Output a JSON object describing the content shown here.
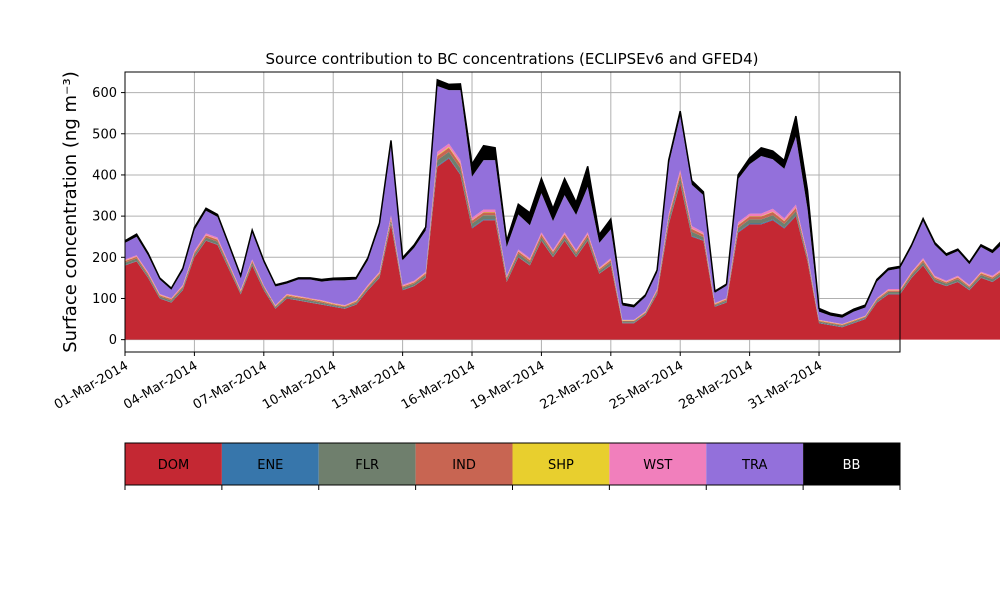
{
  "chart_data": {
    "type": "area",
    "stacked": true,
    "title": "Source contribution to BC concentrations (ECLIPSEv6 and GFED4)",
    "ylabel": "Surface concentration (ng m⁻³)",
    "xlabel": "",
    "x_start": "2014-03-01",
    "x_step_hours": 12,
    "xlim": [
      "2014-02-29T00:00",
      "2014-04-03T12:00"
    ],
    "ylim": [
      -30,
      650
    ],
    "yticks": [
      0,
      100,
      200,
      300,
      400,
      500,
      600
    ],
    "xtick_labels": [
      "01-Mar-2014",
      "04-Mar-2014",
      "07-Mar-2014",
      "10-Mar-2014",
      "13-Mar-2014",
      "16-Mar-2014",
      "19-Mar-2014",
      "22-Mar-2014",
      "25-Mar-2014",
      "28-Mar-2014",
      "31-Mar-2014"
    ],
    "grid": true,
    "legend_position": "bottom",
    "series": [
      {
        "name": "DOM",
        "color": "#c42833",
        "values": [
          180,
          190,
          150,
          100,
          90,
          120,
          200,
          240,
          230,
          170,
          110,
          180,
          120,
          75,
          100,
          95,
          90,
          85,
          80,
          75,
          85,
          120,
          150,
          280,
          120,
          130,
          150,
          420,
          440,
          400,
          270,
          290,
          290,
          140,
          200,
          180,
          240,
          200,
          240,
          200,
          240,
          160,
          180,
          40,
          40,
          60,
          110,
          280,
          380,
          250,
          240,
          80,
          90,
          260,
          280,
          280,
          290,
          270,
          300,
          190,
          40,
          35,
          30,
          40,
          50,
          90,
          110,
          110,
          150,
          180,
          140,
          130,
          140,
          120,
          150,
          140,
          160,
          150,
          200,
          190,
          210,
          170,
          200,
          200,
          200,
          180,
          160
        ]
      },
      {
        "name": "ENE",
        "color": "#3776ab",
        "values": [
          1,
          1,
          1,
          1,
          1,
          1,
          1,
          1,
          1,
          1,
          1,
          1,
          1,
          1,
          1,
          1,
          1,
          1,
          1,
          1,
          1,
          1,
          1,
          2,
          1,
          1,
          1,
          2,
          2,
          2,
          2,
          2,
          2,
          1,
          1,
          1,
          1,
          1,
          1,
          1,
          1,
          1,
          1,
          1,
          1,
          1,
          1,
          2,
          2,
          2,
          1,
          1,
          1,
          2,
          2,
          2,
          2,
          2,
          2,
          1,
          1,
          1,
          1,
          1,
          1,
          1,
          1,
          1,
          1,
          1,
          1,
          1,
          1,
          1,
          1,
          1,
          1,
          1,
          1,
          1,
          1,
          1,
          1,
          1,
          1,
          1,
          1
        ]
      },
      {
        "name": "FLR",
        "color": "#6f7f6d",
        "values": [
          6,
          6,
          5,
          4,
          4,
          5,
          6,
          7,
          7,
          6,
          4,
          6,
          5,
          3,
          4,
          4,
          4,
          4,
          3,
          3,
          4,
          5,
          6,
          8,
          5,
          5,
          6,
          14,
          14,
          14,
          10,
          10,
          10,
          6,
          8,
          7,
          8,
          7,
          8,
          7,
          8,
          6,
          7,
          3,
          3,
          3,
          5,
          10,
          12,
          10,
          8,
          3,
          4,
          9,
          10,
          10,
          10,
          9,
          10,
          7,
          3,
          3,
          3,
          3,
          3,
          4,
          5,
          5,
          6,
          7,
          6,
          5,
          6,
          5,
          6,
          6,
          6,
          6,
          8,
          8,
          8,
          7,
          8,
          8,
          8,
          7,
          7
        ]
      },
      {
        "name": "IND",
        "color": "#c86552",
        "values": [
          4,
          4,
          4,
          3,
          3,
          3,
          4,
          5,
          5,
          4,
          3,
          4,
          3,
          2,
          3,
          3,
          3,
          3,
          2,
          2,
          3,
          3,
          4,
          6,
          3,
          3,
          4,
          10,
          10,
          10,
          7,
          7,
          7,
          4,
          5,
          5,
          6,
          5,
          6,
          5,
          6,
          4,
          5,
          2,
          2,
          2,
          3,
          7,
          9,
          7,
          6,
          2,
          3,
          7,
          7,
          7,
          8,
          7,
          8,
          5,
          2,
          2,
          2,
          2,
          2,
          3,
          3,
          3,
          4,
          5,
          4,
          3,
          4,
          3,
          4,
          4,
          4,
          4,
          5,
          5,
          5,
          4,
          5,
          5,
          5,
          4,
          4
        ]
      },
      {
        "name": "SHP",
        "color": "#e8cf2e",
        "values": [
          1,
          1,
          1,
          1,
          1,
          1,
          1,
          1,
          1,
          1,
          1,
          1,
          1,
          1,
          1,
          1,
          1,
          1,
          1,
          1,
          1,
          1,
          1,
          1,
          1,
          1,
          1,
          2,
          2,
          2,
          1,
          1,
          1,
          1,
          1,
          1,
          1,
          1,
          1,
          1,
          1,
          1,
          1,
          1,
          1,
          1,
          1,
          1,
          2,
          1,
          1,
          1,
          1,
          1,
          1,
          1,
          1,
          1,
          1,
          1,
          1,
          1,
          1,
          1,
          1,
          1,
          1,
          1,
          1,
          1,
          1,
          1,
          1,
          1,
          1,
          1,
          1,
          1,
          1,
          1,
          1,
          1,
          1,
          1,
          1,
          1,
          1
        ]
      },
      {
        "name": "WST",
        "color": "#f17fbc",
        "values": [
          3,
          3,
          3,
          2,
          2,
          3,
          4,
          4,
          4,
          3,
          2,
          3,
          2,
          2,
          2,
          2,
          2,
          2,
          2,
          2,
          2,
          3,
          3,
          5,
          3,
          3,
          3,
          8,
          8,
          8,
          6,
          6,
          6,
          3,
          4,
          4,
          5,
          4,
          5,
          4,
          5,
          3,
          4,
          1,
          1,
          2,
          3,
          6,
          8,
          6,
          5,
          2,
          2,
          6,
          6,
          6,
          7,
          6,
          7,
          4,
          1,
          1,
          1,
          1,
          1,
          2,
          3,
          3,
          3,
          4,
          3,
          3,
          3,
          3,
          3,
          3,
          4,
          3,
          4,
          4,
          4,
          4,
          4,
          4,
          4,
          4,
          4
        ]
      },
      {
        "name": "TRA",
        "color": "#9370db",
        "values": [
          40,
          45,
          40,
          35,
          20,
          35,
          50,
          55,
          50,
          40,
          30,
          65,
          55,
          45,
          25,
          40,
          45,
          45,
          55,
          60,
          50,
          60,
          110,
          170,
          60,
          80,
          100,
          160,
          130,
          170,
          100,
          120,
          120,
          70,
          85,
          80,
          95,
          70,
          90,
          85,
          110,
          60,
          70,
          35,
          30,
          35,
          40,
          120,
          130,
          100,
          90,
          25,
          30,
          105,
          120,
          140,
          120,
          120,
          165,
          110,
          20,
          15,
          15,
          20,
          20,
          40,
          45,
          50,
          60,
          90,
          75,
          60,
          60,
          50,
          60,
          55,
          60,
          60,
          60,
          70,
          70,
          70,
          65,
          70,
          70,
          60,
          55
        ]
      },
      {
        "name": "BB",
        "color": "#000000",
        "values": [
          5,
          6,
          6,
          4,
          4,
          5,
          6,
          6,
          6,
          5,
          4,
          6,
          5,
          4,
          4,
          4,
          4,
          5,
          5,
          6,
          5,
          6,
          8,
          12,
          6,
          7,
          8,
          15,
          14,
          15,
          30,
          35,
          30,
          15,
          25,
          30,
          35,
          30,
          40,
          30,
          50,
          20,
          25,
          5,
          5,
          5,
          6,
          10,
          12,
          10,
          8,
          4,
          4,
          10,
          15,
          20,
          20,
          20,
          50,
          45,
          8,
          6,
          6,
          6,
          6,
          5,
          5,
          5,
          5,
          6,
          6,
          5,
          5,
          5,
          5,
          6,
          10,
          10,
          15,
          20,
          40,
          30,
          40,
          30,
          40,
          35,
          25
        ]
      }
    ]
  }
}
